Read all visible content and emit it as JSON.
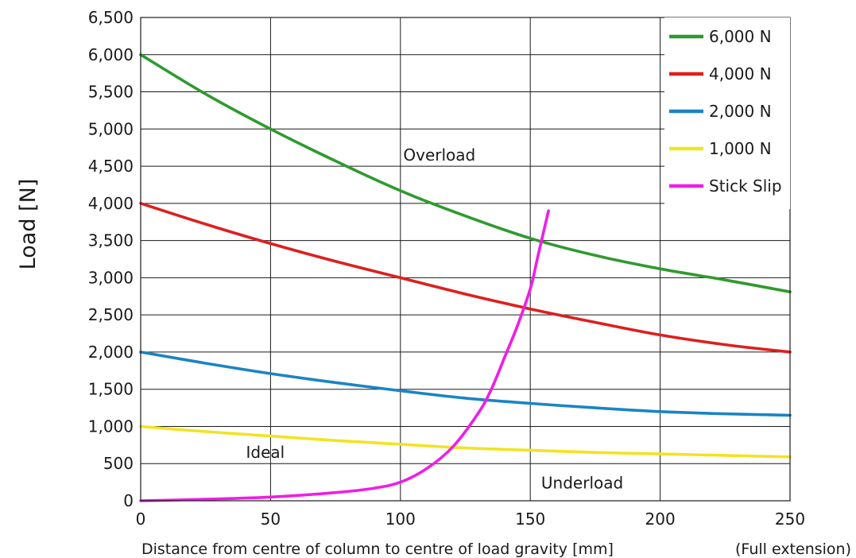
{
  "chart_data": {
    "type": "line",
    "title": "",
    "xlabel": "Distance from centre of column to centre of load gravity [mm]",
    "xlabel_note": "(Full extension)",
    "ylabel": "Load [N]",
    "xlim": [
      0,
      250
    ],
    "ylim": [
      0,
      6500
    ],
    "x_ticks": [
      0,
      50,
      100,
      150,
      200,
      250
    ],
    "x_tick_labels": [
      "0",
      "50",
      "100",
      "150",
      "200",
      "250"
    ],
    "y_ticks": [
      0,
      500,
      1000,
      1500,
      2000,
      2500,
      3000,
      3500,
      4000,
      4500,
      5000,
      5500,
      6000,
      6500
    ],
    "y_tick_labels": [
      "0",
      "500",
      "1,000",
      "1,500",
      "2,000",
      "2,500",
      "3,000",
      "3,500",
      "4,000",
      "4,500",
      "5,000",
      "5,500",
      "6,000",
      "6,500"
    ],
    "grid": true,
    "legend_position": "top-right",
    "series": [
      {
        "name": "6,000 N",
        "color": "#2e9a2e",
        "points": [
          [
            0,
            6000
          ],
          [
            25,
            5470
          ],
          [
            50,
            5000
          ],
          [
            75,
            4570
          ],
          [
            100,
            4170
          ],
          [
            125,
            3830
          ],
          [
            150,
            3530
          ],
          [
            175,
            3300
          ],
          [
            200,
            3120
          ],
          [
            225,
            2970
          ],
          [
            250,
            2810
          ]
        ]
      },
      {
        "name": "4,000 N",
        "color": "#dd1f1f",
        "points": [
          [
            0,
            4000
          ],
          [
            25,
            3720
          ],
          [
            50,
            3460
          ],
          [
            75,
            3220
          ],
          [
            100,
            3000
          ],
          [
            125,
            2780
          ],
          [
            150,
            2580
          ],
          [
            175,
            2400
          ],
          [
            200,
            2230
          ],
          [
            225,
            2100
          ],
          [
            250,
            2000
          ]
        ]
      },
      {
        "name": "2,000 N",
        "color": "#1b84c4",
        "points": [
          [
            0,
            2000
          ],
          [
            25,
            1850
          ],
          [
            50,
            1710
          ],
          [
            75,
            1590
          ],
          [
            100,
            1480
          ],
          [
            125,
            1380
          ],
          [
            150,
            1310
          ],
          [
            175,
            1250
          ],
          [
            200,
            1200
          ],
          [
            225,
            1170
          ],
          [
            250,
            1150
          ]
        ]
      },
      {
        "name": "1,000 N",
        "color": "#f2e324",
        "points": [
          [
            0,
            1000
          ],
          [
            25,
            930
          ],
          [
            50,
            870
          ],
          [
            75,
            810
          ],
          [
            100,
            760
          ],
          [
            125,
            710
          ],
          [
            150,
            680
          ],
          [
            175,
            650
          ],
          [
            200,
            630
          ],
          [
            225,
            610
          ],
          [
            250,
            590
          ]
        ]
      },
      {
        "name": "Stick Slip",
        "color": "#ee1ee6",
        "points": [
          [
            0,
            0
          ],
          [
            25,
            20
          ],
          [
            50,
            50
          ],
          [
            75,
            110
          ],
          [
            90,
            170
          ],
          [
            100,
            250
          ],
          [
            110,
            430
          ],
          [
            120,
            720
          ],
          [
            130,
            1180
          ],
          [
            135,
            1500
          ],
          [
            140,
            1920
          ],
          [
            145,
            2350
          ],
          [
            150,
            2850
          ],
          [
            153,
            3300
          ],
          [
            157,
            3900
          ]
        ]
      }
    ],
    "annotations": [
      {
        "text": "Overload",
        "x": 115,
        "y": 4650
      },
      {
        "text": "Ideal",
        "x": 48,
        "y": 650
      },
      {
        "text": "Underload",
        "x": 170,
        "y": 240
      }
    ]
  }
}
